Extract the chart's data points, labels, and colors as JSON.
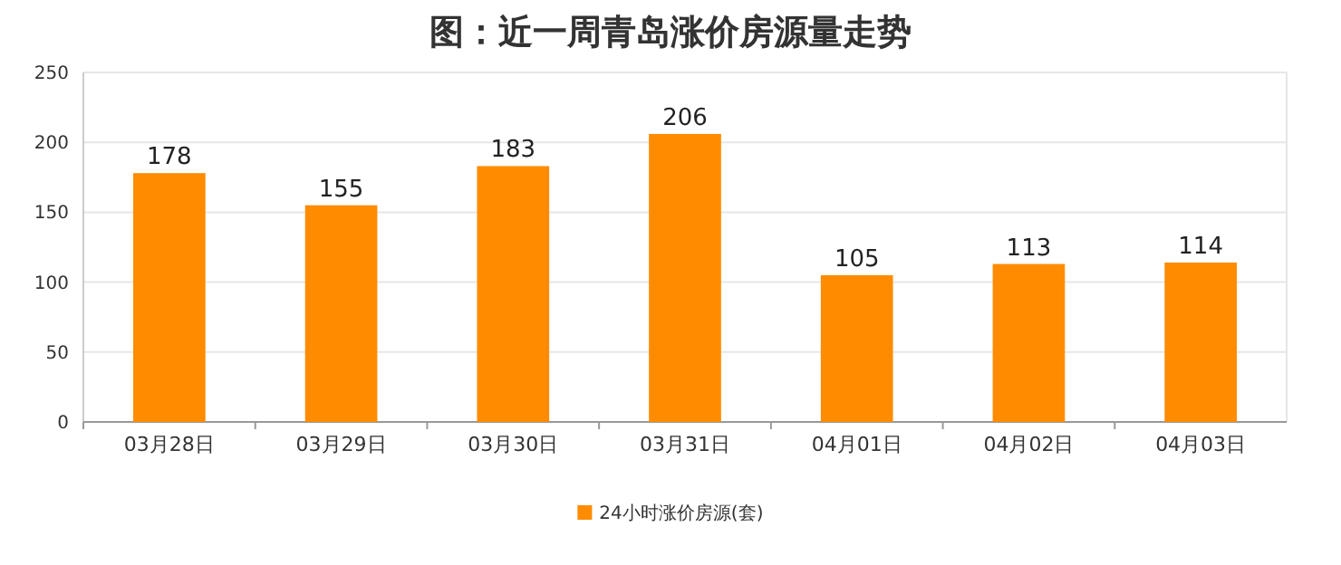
{
  "chart_data": {
    "type": "bar",
    "title": "图：近一周青岛涨价房源量走势",
    "categories": [
      "03月28日",
      "03月29日",
      "03月30日",
      "03月31日",
      "04月01日",
      "04月02日",
      "04月03日"
    ],
    "series": [
      {
        "name": "24小时涨价房源(套)",
        "color": "#ff8c00",
        "values": [
          178,
          155,
          183,
          206,
          105,
          113,
          114
        ]
      }
    ],
    "ylim": [
      0,
      250
    ],
    "yticks": [
      0,
      50,
      100,
      150,
      200,
      250
    ],
    "grid": "y",
    "data_labels": true,
    "legend": "bottom"
  }
}
